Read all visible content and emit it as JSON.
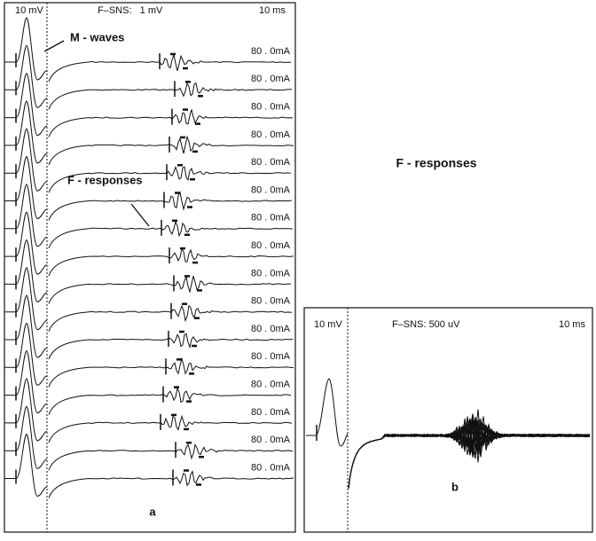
{
  "panel_a": {
    "header": {
      "gain": "10 mV",
      "sensitivity": "F–SNS:   1 mV",
      "sweep": "10 ms"
    },
    "annotations": {
      "m_waves": "M - waves",
      "f_responses": "F - responses"
    },
    "traces": [
      {
        "stimulus": "80 . 0mA"
      },
      {
        "stimulus": "80 . 0mA"
      },
      {
        "stimulus": "80 . 0mA"
      },
      {
        "stimulus": "80 . 0mA"
      },
      {
        "stimulus": "80 . 0mA"
      },
      {
        "stimulus": "80 . 0mA"
      },
      {
        "stimulus": "80 . 0mA"
      },
      {
        "stimulus": "80 . 0mA"
      },
      {
        "stimulus": "80 . 0mA"
      },
      {
        "stimulus": "80 . 0mA"
      },
      {
        "stimulus": "80 . 0mA"
      },
      {
        "stimulus": "80 . 0mA"
      },
      {
        "stimulus": "80 . 0mA"
      },
      {
        "stimulus": "80 . 0mA"
      },
      {
        "stimulus": "80 . 0mA"
      },
      {
        "stimulus": "80 . 0mA"
      }
    ],
    "label": "a"
  },
  "title": "F - responses",
  "panel_b": {
    "header": {
      "gain": "10 mV",
      "sensitivity": "F–SNS: 500 uV",
      "sweep": "10 ms"
    },
    "label": "b"
  }
}
